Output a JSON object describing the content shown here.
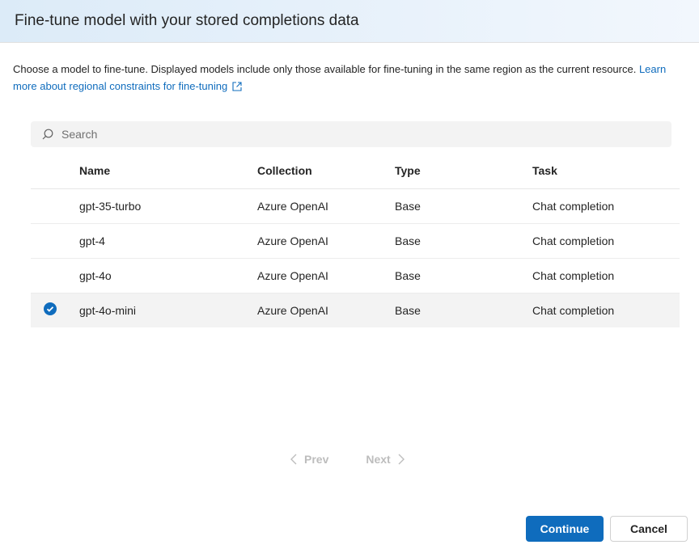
{
  "dialog": {
    "title": "Fine-tune model with your stored completions data",
    "description": "Choose a model to fine-tune. Displayed models include only those available for fine-tuning in the same region as the current resource.",
    "link": "Learn more about regional constraints for fine-tuning"
  },
  "search": {
    "placeholder": "Search"
  },
  "table": {
    "headers": [
      "Name",
      "Collection",
      "Type",
      "Task"
    ],
    "rows": [
      {
        "name": "gpt-35-turbo",
        "collection": "Azure OpenAI",
        "type": "Base",
        "task": "Chat completion",
        "selected": false
      },
      {
        "name": "gpt-4",
        "collection": "Azure OpenAI",
        "type": "Base",
        "task": "Chat completion",
        "selected": false
      },
      {
        "name": "gpt-4o",
        "collection": "Azure OpenAI",
        "type": "Base",
        "task": "Chat completion",
        "selected": false
      },
      {
        "name": "gpt-4o-mini",
        "collection": "Azure OpenAI",
        "type": "Base",
        "task": "Chat completion",
        "selected": true
      }
    ]
  },
  "pager": {
    "prev": "Prev",
    "next": "Next"
  },
  "footer": {
    "continue": "Continue",
    "cancel": "Cancel"
  },
  "colors": {
    "accent": "#0f6cbd"
  }
}
